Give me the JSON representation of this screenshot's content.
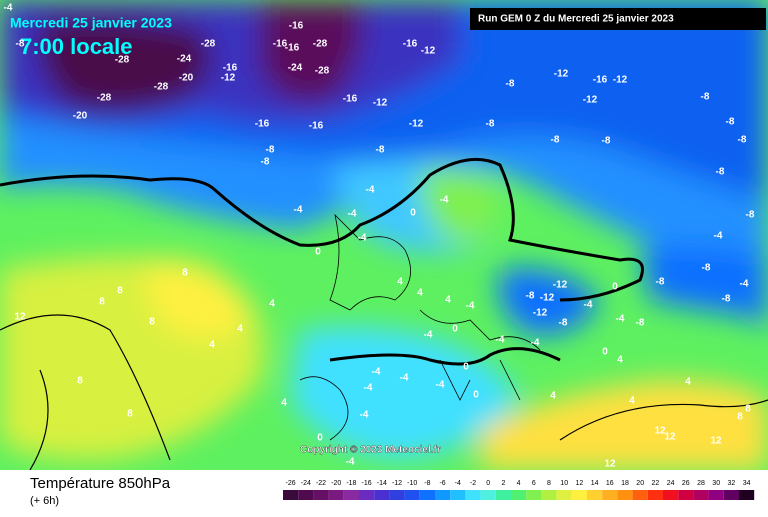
{
  "header": {
    "date": "Mercredi 25 janvier 2023",
    "time": "7:00 locale",
    "run": "Run GEM 0 Z du Mercredi 25 janvier 2023"
  },
  "map": {
    "copyright": "Copyright © 2023 Meteociel.fr",
    "labels": [
      -4,
      -8,
      -28,
      -28,
      -24,
      -16,
      -12,
      -20,
      -28,
      -28,
      -20,
      -16,
      -16,
      -16,
      -28,
      -28,
      -24,
      -16,
      -12,
      -16,
      -12,
      -12,
      -16,
      -16,
      -8,
      -8,
      -8,
      -8,
      -12,
      -16,
      -12,
      -12,
      -8,
      -8,
      -8,
      -8,
      -8,
      -8,
      -8,
      -4,
      -4,
      -4,
      -4,
      0,
      0,
      -4,
      4,
      4,
      4,
      8,
      8,
      8,
      12,
      8,
      4,
      4,
      4,
      8,
      8,
      -8,
      -12,
      -12,
      -8,
      -12,
      -4,
      0,
      -4,
      -8,
      -8,
      -8,
      -4,
      -4,
      -8,
      -8,
      0,
      4,
      -4,
      -4,
      0,
      -4,
      -4,
      -4,
      -4,
      -4,
      -4,
      0,
      0,
      -4,
      0,
      -4,
      12,
      12,
      12,
      12,
      8,
      8,
      4,
      4,
      4,
      4
    ]
  },
  "footer": {
    "title": "Température 850hPa",
    "lead": "(+ 6h)"
  },
  "scale": {
    "values": [
      -26,
      -24,
      -22,
      -20,
      -18,
      -16,
      -14,
      -12,
      -10,
      -8,
      -6,
      -4,
      -2,
      0,
      2,
      4,
      6,
      8,
      10,
      12,
      14,
      16,
      18,
      20,
      22,
      24,
      26,
      28,
      30,
      32,
      34
    ],
    "colors": [
      "#3a0a3a",
      "#500a50",
      "#650f65",
      "#7a1a80",
      "#8a2aa0",
      "#6a2cc0",
      "#4a30d0",
      "#3040e0",
      "#2050f0",
      "#1070ff",
      "#1098ff",
      "#20c0ff",
      "#40e0ff",
      "#50f0e0",
      "#40f0a0",
      "#50f070",
      "#80f050",
      "#b0f040",
      "#e0f040",
      "#fff040",
      "#ffd030",
      "#ffb020",
      "#ff9010",
      "#ff6010",
      "#ff3010",
      "#f01020",
      "#d00040",
      "#b00060",
      "#900080",
      "#600060",
      "#200020"
    ]
  }
}
